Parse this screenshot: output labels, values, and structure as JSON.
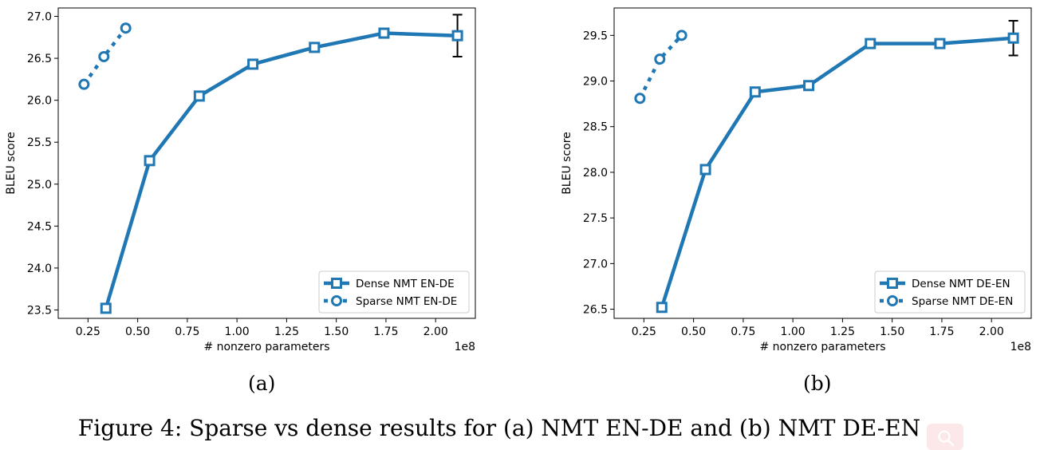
{
  "chart_data": [
    {
      "type": "line",
      "panel_label": "(a)",
      "xlabel": "# nonzero parameters",
      "ylabel": "BLEU score",
      "x_multiplier": "1e8",
      "xlim": [
        0.1,
        2.2
      ],
      "ylim": [
        23.4,
        27.1
      ],
      "x_ticks": [
        0.25,
        0.5,
        0.75,
        1.0,
        1.25,
        1.5,
        1.75,
        2.0
      ],
      "y_ticks": [
        23.5,
        24.0,
        24.5,
        25.0,
        25.5,
        26.0,
        26.5,
        27.0
      ],
      "x_tick_labels": [
        "0.25",
        "0.50",
        "0.75",
        "1.00",
        "1.25",
        "1.50",
        "1.75",
        "2.00"
      ],
      "y_tick_labels": [
        "23.5",
        "24.0",
        "24.5",
        "25.0",
        "25.5",
        "26.0",
        "26.5",
        "27.0"
      ],
      "legend": "lower right",
      "grid": false,
      "series": [
        {
          "name": "Dense NMT EN-DE",
          "marker": "square",
          "style": "solid",
          "x": [
            0.34,
            0.56,
            0.81,
            1.08,
            1.39,
            1.74,
            2.11
          ],
          "y": [
            23.52,
            25.28,
            26.05,
            26.43,
            26.63,
            26.8,
            26.77
          ],
          "error_bar": {
            "x": 2.11,
            "low": 26.52,
            "high": 27.02
          }
        },
        {
          "name": "Sparse NMT EN-DE",
          "marker": "circle",
          "style": "dotted",
          "x": [
            0.23,
            0.33,
            0.44
          ],
          "y": [
            26.19,
            26.52,
            26.86
          ]
        }
      ]
    },
    {
      "type": "line",
      "panel_label": "(b)",
      "xlabel": "# nonzero parameters",
      "ylabel": "BLEU score",
      "x_multiplier": "1e8",
      "xlim": [
        0.1,
        2.2
      ],
      "ylim": [
        26.4,
        29.8
      ],
      "x_ticks": [
        0.25,
        0.5,
        0.75,
        1.0,
        1.25,
        1.5,
        1.75,
        2.0
      ],
      "y_ticks": [
        26.5,
        27.0,
        27.5,
        28.0,
        28.5,
        29.0,
        29.5
      ],
      "x_tick_labels": [
        "0.25",
        "0.50",
        "0.75",
        "1.00",
        "1.25",
        "1.50",
        "1.75",
        "2.00"
      ],
      "y_tick_labels": [
        "26.5",
        "27.0",
        "27.5",
        "28.0",
        "28.5",
        "29.0",
        "29.5"
      ],
      "legend": "lower right",
      "grid": false,
      "series": [
        {
          "name": "Dense NMT DE-EN",
          "marker": "square",
          "style": "solid",
          "x": [
            0.34,
            0.56,
            0.81,
            1.08,
            1.39,
            1.74,
            2.11
          ],
          "y": [
            26.52,
            28.03,
            28.88,
            28.95,
            29.41,
            29.41,
            29.47
          ],
          "error_bar": {
            "x": 2.11,
            "low": 29.28,
            "high": 29.66
          }
        },
        {
          "name": "Sparse NMT DE-EN",
          "marker": "circle",
          "style": "dotted",
          "x": [
            0.23,
            0.33,
            0.44
          ],
          "y": [
            28.81,
            29.24,
            29.5
          ]
        }
      ]
    }
  ],
  "caption": "Figure 4: Sparse vs dense results for (a) NMT EN-DE and (b) NMT DE-EN",
  "colors": {
    "series": "#1f77b4",
    "error_bar": "#000000"
  },
  "icons": {
    "badge": "search-icon"
  }
}
